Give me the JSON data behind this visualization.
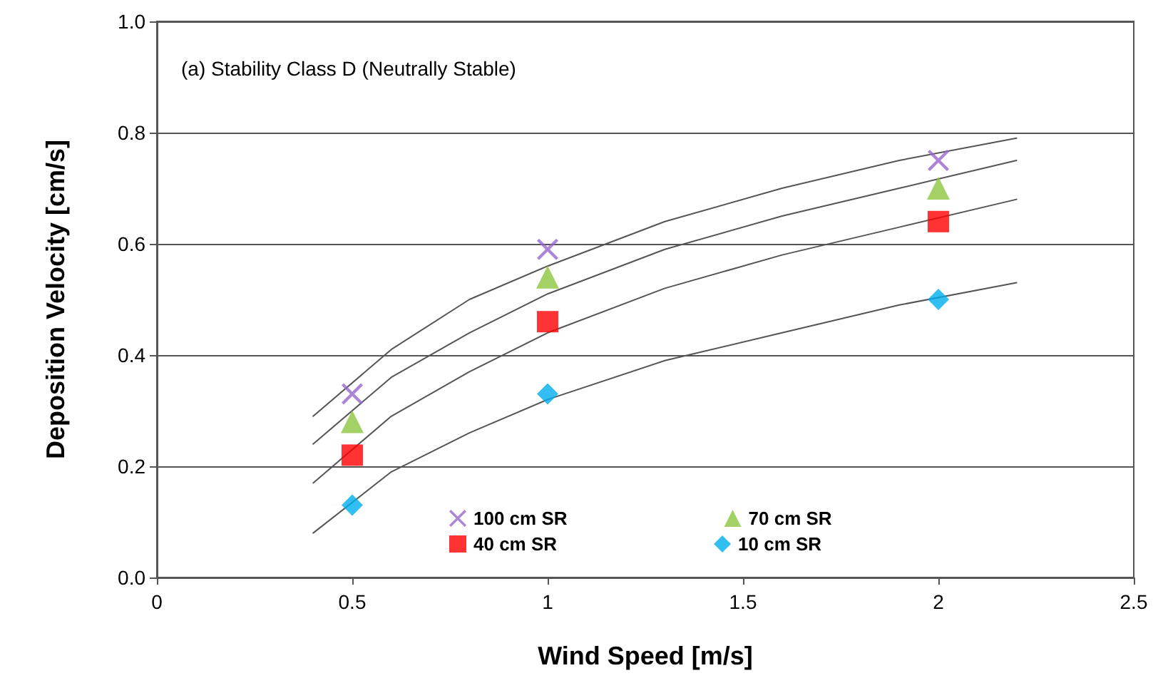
{
  "chart_data": {
    "type": "scatter",
    "title": "(a) Stability Class D (Neutrally Stable)",
    "xlabel": "Wind Speed [m/s]",
    "ylabel": "Deposition Velocity [cm/s]",
    "x": [
      0.5,
      1,
      2
    ],
    "series": [
      {
        "name": "100 cm SR",
        "color": "#9966cc",
        "marker": "cross",
        "values": [
          0.33,
          0.59,
          0.75
        ]
      },
      {
        "name": "70 cm SR",
        "color": "#8cc63f",
        "marker": "triangle",
        "values": [
          0.28,
          0.54,
          0.7
        ]
      },
      {
        "name": "40 cm SR",
        "color": "#ff0000",
        "marker": "square",
        "values": [
          0.22,
          0.46,
          0.64
        ]
      },
      {
        "name": "10 cm SR",
        "color": "#00aeef",
        "marker": "diamond",
        "values": [
          0.13,
          0.33,
          0.5
        ]
      },
      {
        "type": "line",
        "color": "#555555",
        "marker": "none",
        "x": [
          0.4,
          0.6,
          0.8,
          1,
          1.3,
          1.6,
          1.9,
          2.2
        ],
        "values": [
          0.29,
          0.41,
          0.5,
          0.56,
          0.64,
          0.7,
          0.75,
          0.79
        ]
      },
      {
        "type": "line",
        "color": "#555555",
        "marker": "none",
        "x": [
          0.4,
          0.6,
          0.8,
          1,
          1.3,
          1.6,
          1.9,
          2.2
        ],
        "values": [
          0.24,
          0.36,
          0.44,
          0.51,
          0.59,
          0.65,
          0.7,
          0.75
        ]
      },
      {
        "type": "line",
        "color": "#555555",
        "marker": "none",
        "x": [
          0.4,
          0.6,
          0.8,
          1,
          1.3,
          1.6,
          1.9,
          2.2
        ],
        "values": [
          0.17,
          0.29,
          0.37,
          0.44,
          0.52,
          0.58,
          0.63,
          0.68
        ]
      },
      {
        "type": "line",
        "color": "#555555",
        "marker": "none",
        "x": [
          0.4,
          0.6,
          0.8,
          1,
          1.3,
          1.6,
          1.9,
          2.2
        ],
        "values": [
          0.08,
          0.19,
          0.26,
          0.32,
          0.39,
          0.44,
          0.49,
          0.53
        ]
      }
    ],
    "xlim": [
      0,
      2.5
    ],
    "xticks": [
      0,
      0.5,
      1,
      1.5,
      2,
      2.5
    ],
    "ylim": [
      0,
      1
    ],
    "yticks": [
      {
        "value": 0,
        "label": "0.0"
      },
      {
        "value": 0.2,
        "label": "0.2"
      },
      {
        "value": 0.4,
        "label": "0.4"
      },
      {
        "value": 0.6,
        "label": "0.6"
      },
      {
        "value": 0.8,
        "label": "0.8"
      },
      {
        "value": 1,
        "label": "1.0"
      }
    ],
    "grid": "y",
    "legend": "bottom",
    "line_style": "solid"
  }
}
